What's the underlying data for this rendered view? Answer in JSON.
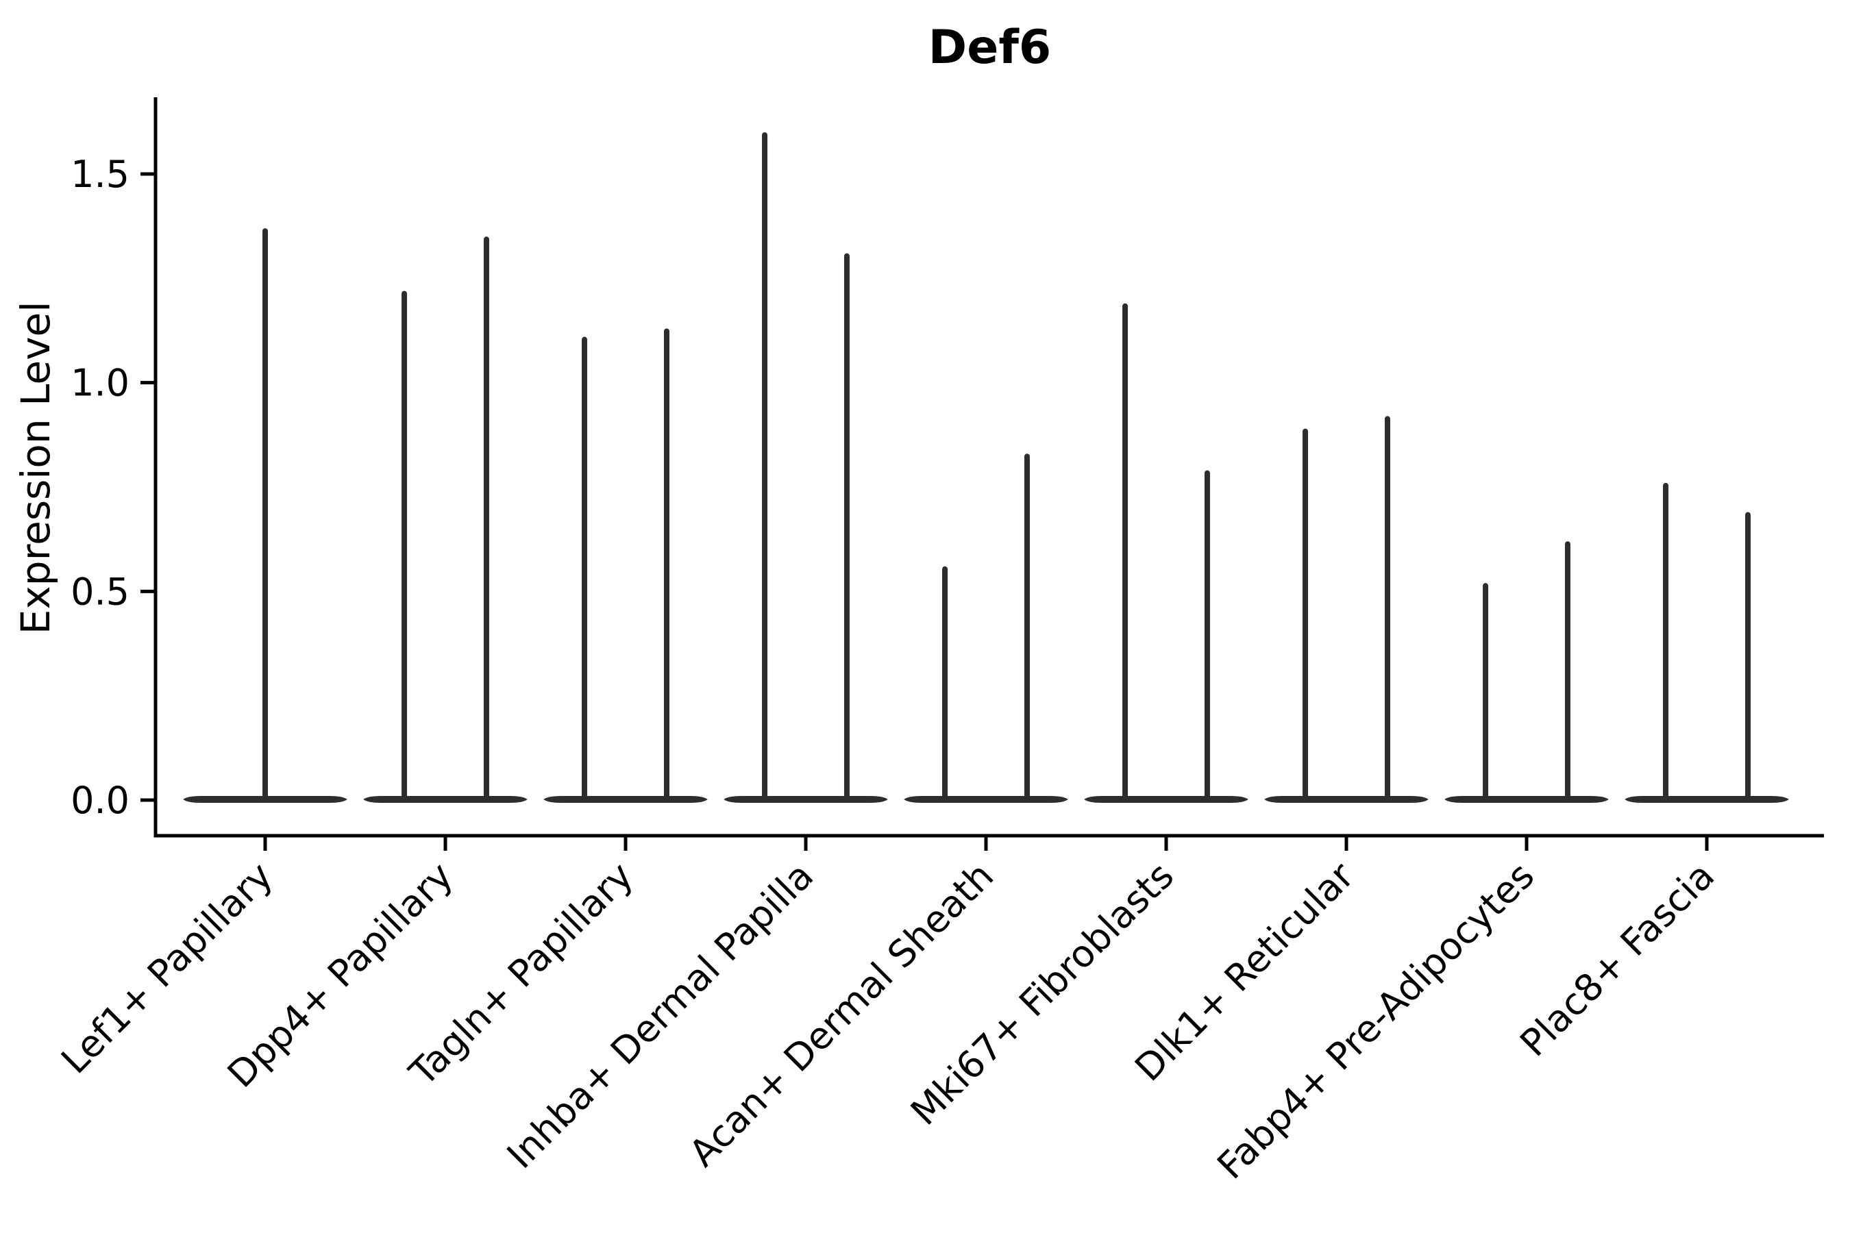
{
  "figure": {
    "title": "Def6",
    "ylabel": "Expression Level"
  },
  "chart_data": {
    "type": "violin",
    "title": "Def6",
    "xlabel": "",
    "ylabel": "Expression Level",
    "ylim": [
      -0.09,
      1.68
    ],
    "yticks": [
      0.0,
      0.5,
      1.0,
      1.5
    ],
    "grid": false,
    "legend": null,
    "axis_color": "#000000",
    "violin_color": "#2d2d2d",
    "categories": [
      "Lef1+ Papillary",
      "Dpp4+ Papillary",
      "Tagln+ Papillary",
      "Inhba+ Dermal Papilla",
      "Acan+ Dermal Sheath",
      "Mki67+ Fibroblasts",
      "Dlk1+ Reticular",
      "Fabp4+ Pre-Adipocytes",
      "Plac8+ Fascia"
    ],
    "violins": [
      {
        "category": "Lef1+ Papillary",
        "base_halfwidth": 0.455,
        "spikes": [
          {
            "offset": 0,
            "max": 1.37
          }
        ]
      },
      {
        "category": "Dpp4+ Papillary",
        "base_halfwidth": 0.455,
        "spikes": [
          {
            "offset": -0.228,
            "max": 1.22
          },
          {
            "offset": 0.228,
            "max": 1.35
          }
        ]
      },
      {
        "category": "Tagln+ Papillary",
        "base_halfwidth": 0.455,
        "spikes": [
          {
            "offset": -0.228,
            "max": 1.11
          },
          {
            "offset": 0.228,
            "max": 1.13
          }
        ]
      },
      {
        "category": "Inhba+ Dermal Papilla",
        "base_halfwidth": 0.455,
        "spikes": [
          {
            "offset": -0.228,
            "max": 1.6
          },
          {
            "offset": 0.228,
            "max": 1.31
          }
        ]
      },
      {
        "category": "Acan+ Dermal Sheath",
        "base_halfwidth": 0.455,
        "spikes": [
          {
            "offset": -0.228,
            "max": 0.56
          },
          {
            "offset": 0.228,
            "max": 0.83
          }
        ]
      },
      {
        "category": "Mki67+ Fibroblasts",
        "base_halfwidth": 0.455,
        "spikes": [
          {
            "offset": -0.228,
            "max": 1.19
          },
          {
            "offset": 0.228,
            "max": 0.79
          }
        ]
      },
      {
        "category": "Dlk1+ Reticular",
        "base_halfwidth": 0.455,
        "spikes": [
          {
            "offset": -0.228,
            "max": 0.89
          },
          {
            "offset": 0.228,
            "max": 0.92
          }
        ]
      },
      {
        "category": "Fabp4+ Pre-Adipocytes",
        "base_halfwidth": 0.455,
        "spikes": [
          {
            "offset": -0.228,
            "max": 0.52
          },
          {
            "offset": 0.228,
            "max": 0.62
          }
        ]
      },
      {
        "category": "Plac8+ Fascia",
        "base_halfwidth": 0.455,
        "spikes": [
          {
            "offset": -0.228,
            "max": 0.76
          },
          {
            "offset": 0.228,
            "max": 0.69
          }
        ]
      }
    ]
  }
}
